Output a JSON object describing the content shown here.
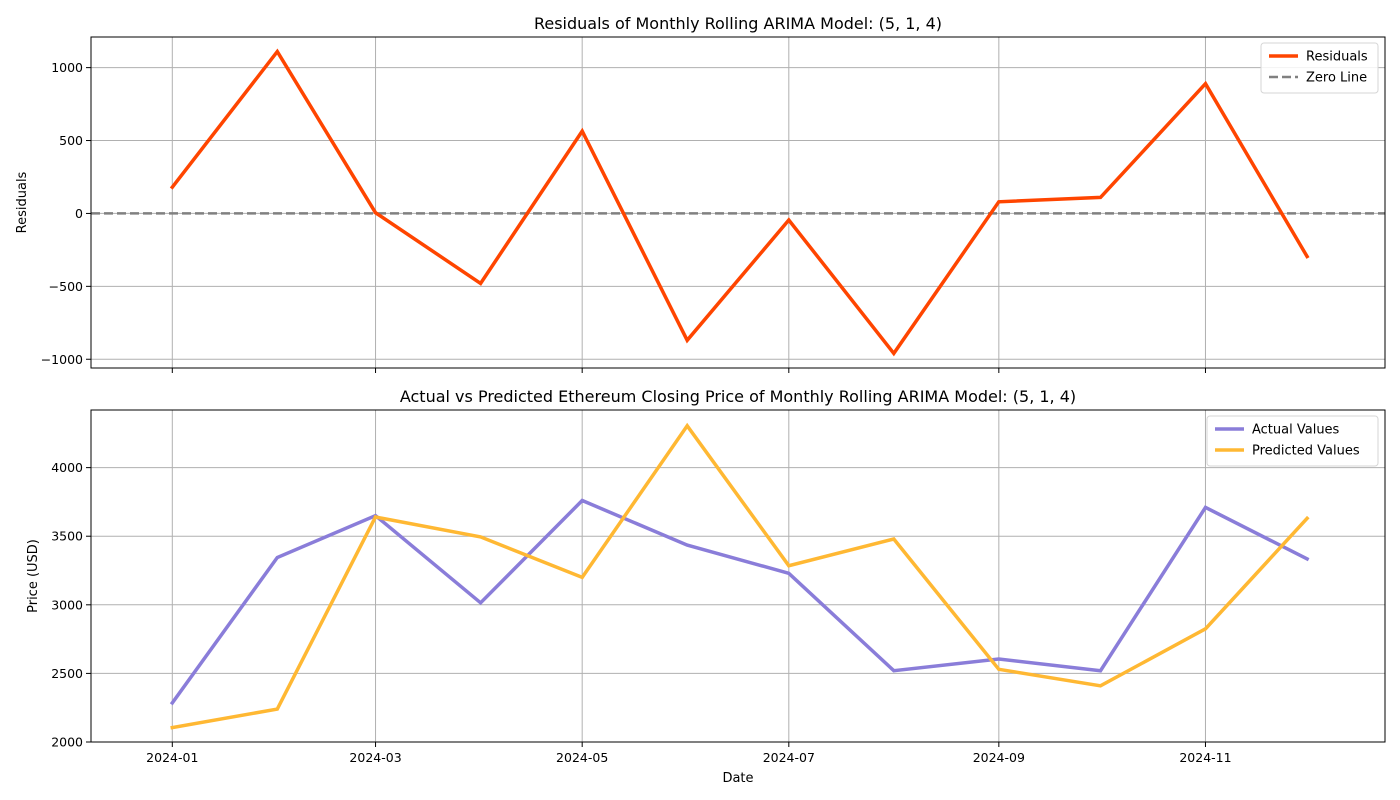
{
  "chart_data": [
    {
      "type": "line",
      "title": "Residuals of Monthly Rolling ARIMA Model: (5, 1, 4)",
      "xlabel": "",
      "ylabel": "Residuals",
      "x": [
        "2024-01-01",
        "2024-02-01",
        "2024-03-01",
        "2024-04-01",
        "2024-05-01",
        "2024-06-01",
        "2024-07-01",
        "2024-08-01",
        "2024-09-01",
        "2024-10-01",
        "2024-11-01",
        "2024-12-01"
      ],
      "xticks": [
        "2024-01",
        "2024-03",
        "2024-05",
        "2024-07",
        "2024-09",
        "2024-11"
      ],
      "show_xtick_labels": false,
      "xlim": [
        "2023-12-08",
        "2024-12-24"
      ],
      "ylim": [
        -1060,
        1210
      ],
      "yticks": [
        -1000,
        -500,
        0,
        500,
        1000
      ],
      "ytick_labels": [
        "−1000",
        "−500",
        "0",
        "500",
        "1000"
      ],
      "grid": true,
      "legend_position": "top-right",
      "series": [
        {
          "name": "Residuals",
          "color": "#ff4500",
          "style": "solid",
          "values": [
            180,
            1110,
            5,
            -480,
            565,
            -870,
            -45,
            -960,
            80,
            110,
            890,
            -295
          ]
        }
      ],
      "hlines": [
        {
          "name": "Zero Line",
          "y": 0,
          "color": "#808080",
          "style": "dashed"
        }
      ]
    },
    {
      "type": "line",
      "title": "Actual vs Predicted Ethereum Closing Price of Monthly Rolling ARIMA Model: (5, 1, 4)",
      "xlabel": "Date",
      "ylabel": "Price (USD)",
      "x": [
        "2024-01-01",
        "2024-02-01",
        "2024-03-01",
        "2024-04-01",
        "2024-05-01",
        "2024-06-01",
        "2024-07-01",
        "2024-08-01",
        "2024-09-01",
        "2024-10-01",
        "2024-11-01",
        "2024-12-01"
      ],
      "xticks": [
        "2024-01",
        "2024-03",
        "2024-05",
        "2024-07",
        "2024-09",
        "2024-11"
      ],
      "show_xtick_labels": true,
      "xlim": [
        "2023-12-08",
        "2024-12-24"
      ],
      "ylim": [
        2000,
        4420
      ],
      "yticks": [
        2000,
        2500,
        3000,
        3500,
        4000
      ],
      "ytick_labels": [
        "2000",
        "2500",
        "3000",
        "3500",
        "4000"
      ],
      "grid": true,
      "legend_position": "top-right",
      "series": [
        {
          "name": "Actual Values",
          "color": "#8a7dd9",
          "style": "solid",
          "values": [
            2285,
            3345,
            3650,
            3015,
            3760,
            3435,
            3230,
            2520,
            2605,
            2520,
            3710,
            3335
          ]
        },
        {
          "name": "Predicted Values",
          "color": "#ffb833",
          "style": "solid",
          "values": [
            2105,
            2240,
            3640,
            3495,
            3200,
            4305,
            3285,
            3480,
            2530,
            2410,
            2825,
            3630
          ]
        }
      ],
      "hlines": []
    }
  ]
}
